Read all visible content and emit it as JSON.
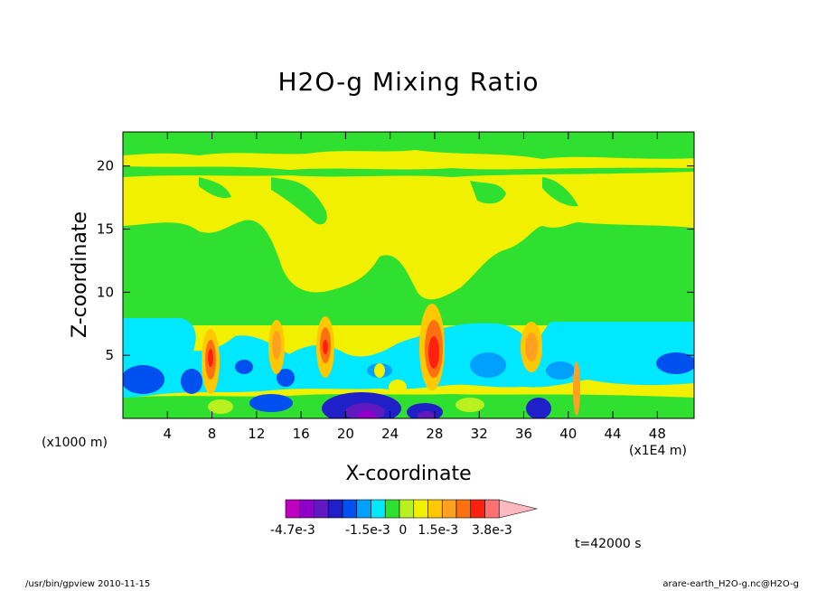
{
  "chart_data": {
    "type": "heatmap",
    "title": "H2O-g Mixing Ratio",
    "xlabel": "X-coordinate",
    "ylabel": "Z-coordinate",
    "x_unit_left": "(x1000 m)",
    "x_unit_right": "(x1E4 m)",
    "x_ticks": [
      4,
      8,
      12,
      16,
      20,
      24,
      28,
      32,
      36,
      40,
      44,
      48
    ],
    "y_ticks": [
      5,
      10,
      15,
      20
    ],
    "xlim": [
      0,
      51.3
    ],
    "ylim": [
      0,
      22.7
    ],
    "colorbar": {
      "colors": [
        "#c000c0",
        "#9000c8",
        "#6018c0",
        "#2020c8",
        "#0050f0",
        "#00a0ff",
        "#00e8ff",
        "#30e030",
        "#b8f020",
        "#f0f000",
        "#ffc800",
        "#ffa020",
        "#ff7010",
        "#ff2010",
        "#ff7070",
        "#ffb8c0"
      ],
      "labels": [
        {
          "text": "-4.7e-3",
          "value": -0.0047
        },
        {
          "text": "-1.5e-3",
          "value": -0.0015
        },
        {
          "text": "0",
          "value": 0
        },
        {
          "text": "1.5e-3",
          "value": 0.0015
        },
        {
          "text": "3.8e-3",
          "value": 0.0038
        }
      ]
    },
    "time_label": "t=42000  s"
  },
  "footer": {
    "left": "/usr/bin/gpview   2010-11-15",
    "right": "arare-earth_H2O-g.nc@H2O-g"
  }
}
